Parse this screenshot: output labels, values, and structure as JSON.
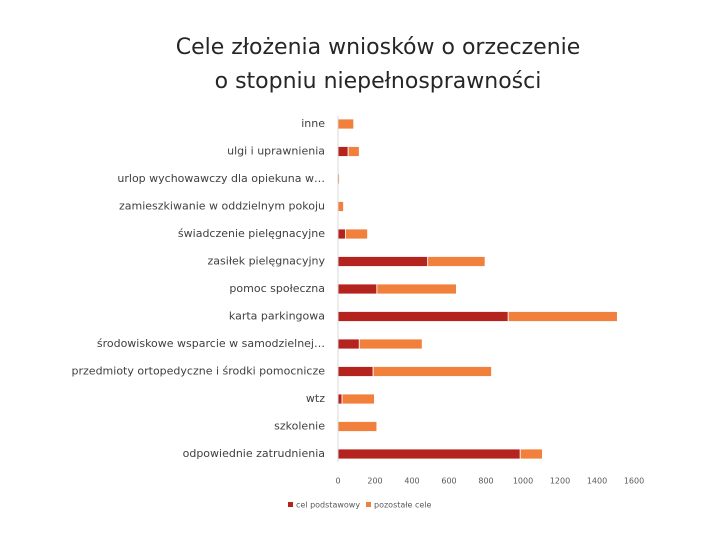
{
  "chart_data": {
    "type": "bar",
    "orientation": "horizontal",
    "stacked": true,
    "title": [
      "Cele złożenia wniosków o orzeczenie",
      "o stopniu niepełnosprawności"
    ],
    "categories": [
      "inne",
      "ulgi i uprawnienia",
      "urlop wychowawczy dla opiekuna w…",
      "zamieszkiwanie w oddzielnym pokoju",
      "świadczenie pielęgnacyjne",
      "zasiłek pielęgnacyjny",
      "pomoc społeczna",
      "karta parkingowa",
      "środowiskowe wsparcie w samodzielnej…",
      "przedmioty ortopedyczne i środki pomocnicze",
      "wtz",
      "szkolenie",
      "odpowiednie zatrudnienia"
    ],
    "series": [
      {
        "name": "cel podstawowy",
        "color": "#b5231f",
        "values": [
          0,
          55,
          0,
          0,
          40,
          485,
          210,
          920,
          115,
          190,
          22,
          0,
          985
        ]
      },
      {
        "name": "pozostałe cele",
        "color": "#f0803c",
        "values": [
          85,
          60,
          8,
          30,
          120,
          310,
          430,
          590,
          340,
          640,
          175,
          210,
          120
        ]
      }
    ],
    "xlim": [
      0,
      1600
    ],
    "xticks": [
      0,
      200,
      400,
      600,
      800,
      1000,
      1200,
      1400,
      1600
    ],
    "legend": "bottom"
  }
}
